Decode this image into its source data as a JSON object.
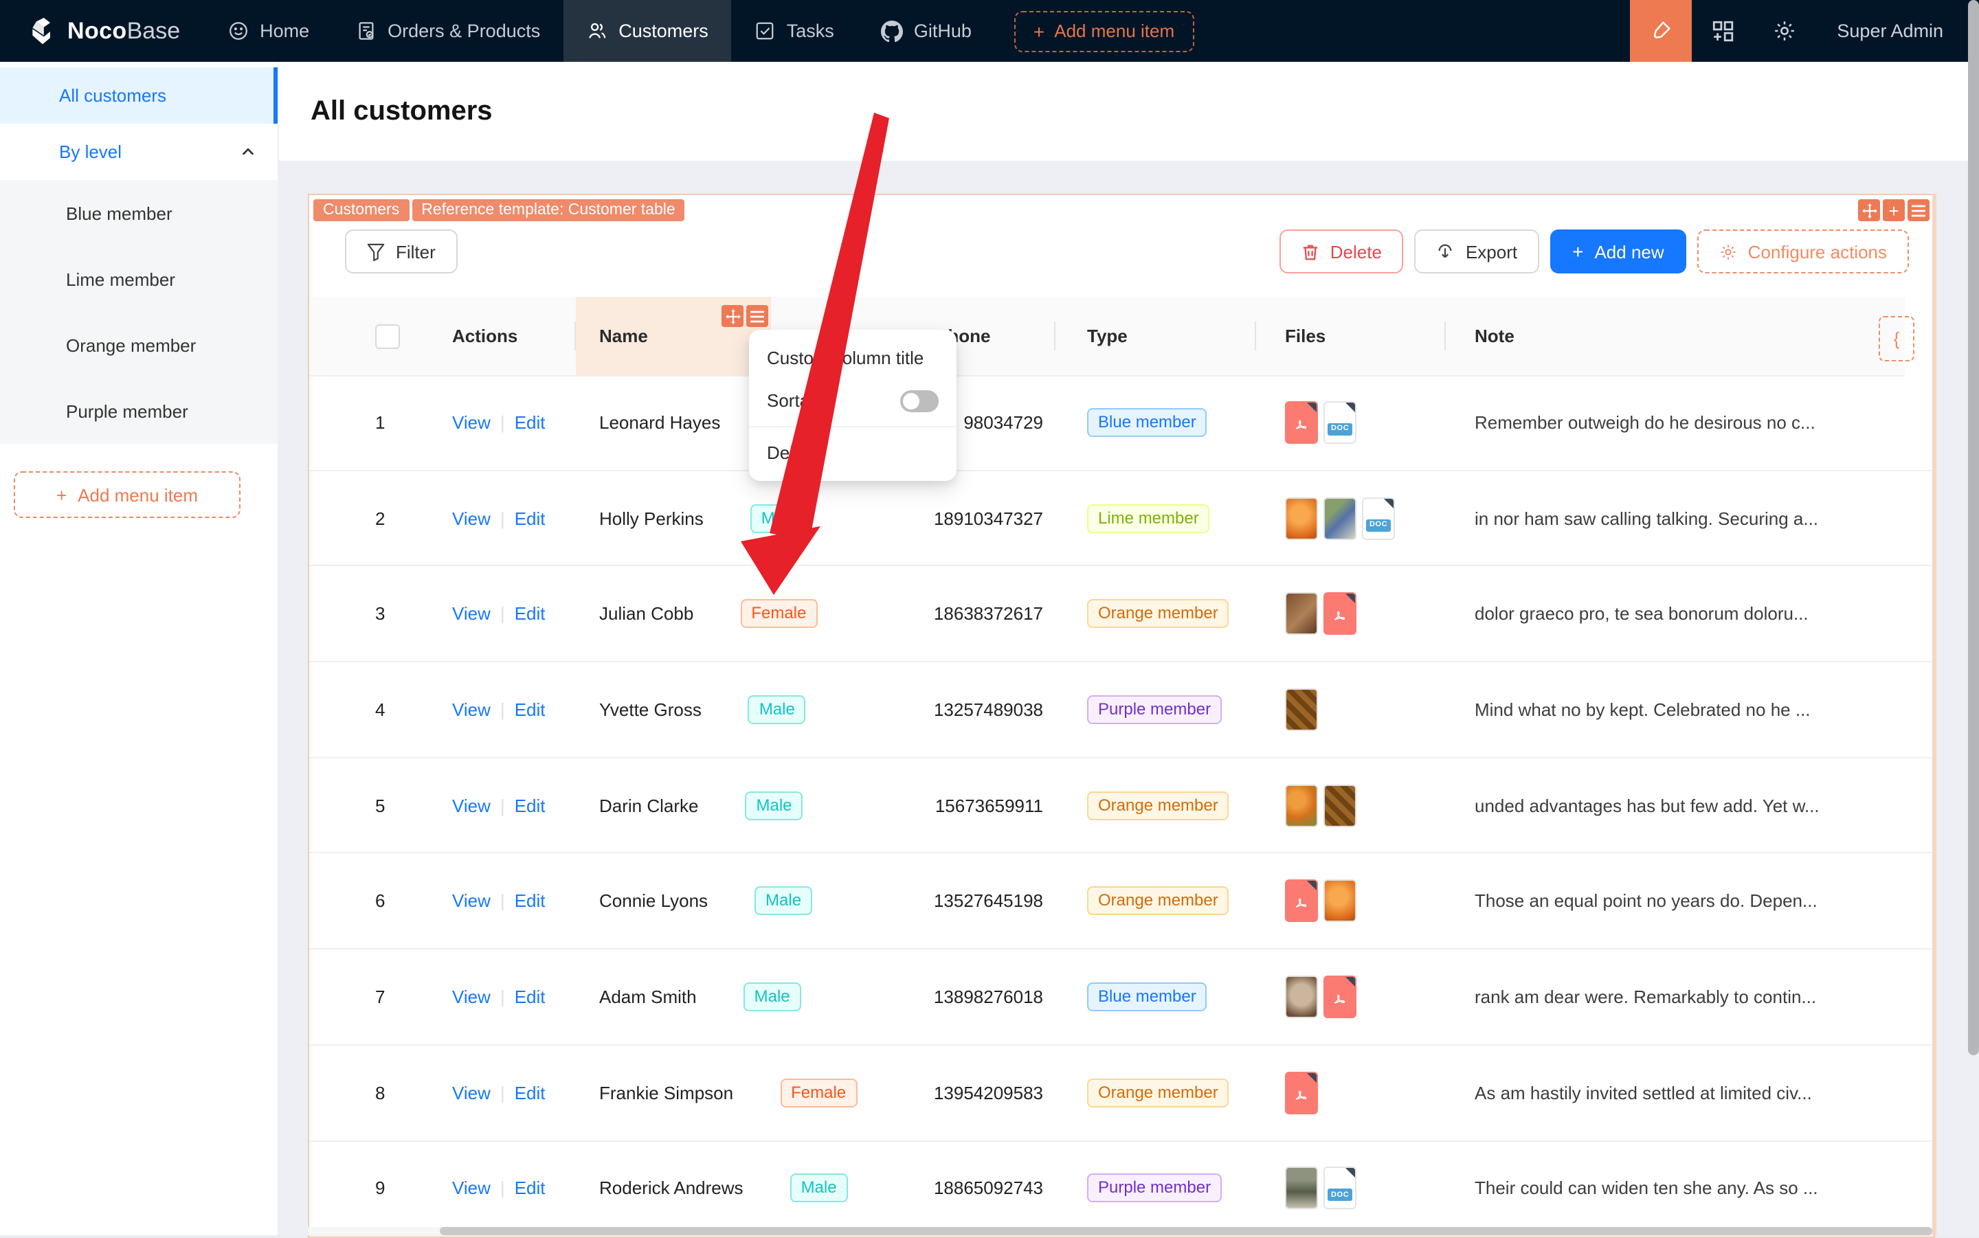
{
  "nav": {
    "logo": {
      "noco": "Noco",
      "base": "Base"
    },
    "items": [
      {
        "label": "Home",
        "icon": "smile",
        "active": false
      },
      {
        "label": "Orders & Products",
        "icon": "orders",
        "active": false
      },
      {
        "label": "Customers",
        "icon": "people",
        "active": true
      },
      {
        "label": "Tasks",
        "icon": "check-square",
        "active": false
      },
      {
        "label": "GitHub",
        "icon": "github",
        "active": false
      }
    ],
    "add_menu_item": "Add menu item",
    "user": "Super Admin"
  },
  "sidebar": {
    "items": [
      {
        "label": "All customers",
        "icon": "people",
        "active": true
      },
      {
        "label": "By level",
        "icon": "people-group",
        "active": false,
        "expanded": true
      }
    ],
    "sub_items": [
      "Blue member",
      "Lime member",
      "Orange member",
      "Purple member"
    ],
    "add_menu_item": "Add menu item"
  },
  "page": {
    "title": "All customers"
  },
  "card": {
    "design_tags": [
      "Customers",
      "Reference template: Customer table"
    ],
    "filter_label": "Filter",
    "actions": {
      "delete": "Delete",
      "export": "Export",
      "add_new": "Add new",
      "configure": "Configure actions"
    },
    "column_config_glyph": "{"
  },
  "popup": {
    "custom_title": "Custom column title",
    "sortable": "Sortable",
    "sortable_on": false,
    "delete": "Delete"
  },
  "table": {
    "columns": [
      {
        "key": "check",
        "label": ""
      },
      {
        "key": "actions",
        "label": "Actions"
      },
      {
        "key": "name",
        "label": "Name"
      },
      {
        "key": "phone",
        "label": "Phone"
      },
      {
        "key": "type",
        "label": "Type"
      },
      {
        "key": "files",
        "label": "Files"
      },
      {
        "key": "note",
        "label": "Note"
      }
    ],
    "row_actions": {
      "view": "View",
      "edit": "Edit"
    },
    "rows": [
      {
        "n": "1",
        "name": "Leonard Hayes",
        "gender": "",
        "phone": "98034729",
        "type": "Blue member",
        "files": [
          "pdf",
          "doc"
        ],
        "note": "Remember outweigh do he desirous no c..."
      },
      {
        "n": "2",
        "name": "Holly Perkins",
        "gender": "Male",
        "phone": "18910347327",
        "type": "Lime member",
        "files": [
          "img:orange",
          "img:plants",
          "doc"
        ],
        "note": "in nor ham saw calling talking. Securing a..."
      },
      {
        "n": "3",
        "name": "Julian Cobb",
        "gender": "Female",
        "phone": "18638372617",
        "type": "Orange member",
        "files": [
          "img:food",
          "pdf"
        ],
        "note": "dolor graeco pro, te sea bonorum doloru..."
      },
      {
        "n": "4",
        "name": "Yvette Gross",
        "gender": "Male",
        "phone": "13257489038",
        "type": "Purple member",
        "files": [
          "img:candy"
        ],
        "note": "Mind what no by kept. Celebrated no he ..."
      },
      {
        "n": "5",
        "name": "Darin Clarke",
        "gender": "Male",
        "phone": "15673659911",
        "type": "Orange member",
        "files": [
          "img:oranges",
          "img:candy"
        ],
        "note": "unded advantages has but few add. Yet w..."
      },
      {
        "n": "6",
        "name": "Connie Lyons",
        "gender": "Male",
        "phone": "13527645198",
        "type": "Orange member",
        "files": [
          "pdf",
          "img:orange"
        ],
        "note": "Those an equal point no years do. Depen..."
      },
      {
        "n": "7",
        "name": "Adam Smith",
        "gender": "Male",
        "phone": "13898276018",
        "type": "Blue member",
        "files": [
          "img:coffee",
          "pdf"
        ],
        "note": "rank am dear were. Remarkably to contin..."
      },
      {
        "n": "8",
        "name": "Frankie Simpson",
        "gender": "Female",
        "phone": "13954209583",
        "type": "Orange member",
        "files": [
          "pdf"
        ],
        "note": "As am hastily invited settled at limited civ..."
      },
      {
        "n": "9",
        "name": "Roderick Andrews",
        "gender": "Male",
        "phone": "18865092743",
        "type": "Purple member",
        "files": [
          "img:store",
          "doc"
        ],
        "note": "Their could can widen ten she any. As so ..."
      }
    ],
    "doc_badge": "DOC"
  },
  "colors": {
    "navbar_bg": "#021527",
    "primary_blue": "#1677ff",
    "designer_orange": "#f18b62",
    "designer_tag_bg": "#ef8a6a",
    "arrow_red": "#e62129",
    "danger_red": "#e8474b",
    "member_tags": {
      "Blue member": {
        "bg": "#e6f4ff",
        "border": "#91caff",
        "text": "#1677ff"
      },
      "Lime member": {
        "bg": "#fcffe6",
        "border": "#eaff8f",
        "text": "#7cb305"
      },
      "Orange member": {
        "bg": "#fff7e6",
        "border": "#ffd591",
        "text": "#d46b08"
      },
      "Purple member": {
        "bg": "#f9f0ff",
        "border": "#d3adf6",
        "text": "#722ed1"
      },
      "Male": {
        "bg": "#e6fffb",
        "border": "#87e8de",
        "text": "#13c2c2"
      },
      "Female": {
        "bg": "#fff2e8",
        "border": "#ffbb96",
        "text": "#fa541c"
      }
    }
  }
}
